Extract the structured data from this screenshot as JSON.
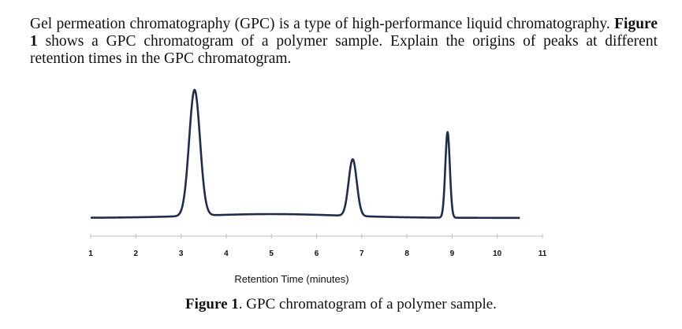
{
  "question": {
    "part1": "Gel permeation chromatography (GPC) is a type of high-performance liquid chromatography.",
    "figure_ref": "Figure 1",
    "part2": "shows a GPC chromatogram of a polymer sample. Explain the origins of peaks at different retention times in the GPC chromatogram."
  },
  "caption": {
    "label": "Figure 1",
    "text": ". GPC chromatogram of a polymer sample."
  },
  "chart_data": {
    "type": "line",
    "xlabel": "Retention Time (minutes)",
    "ylabel": "",
    "xlim": [
      1,
      11
    ],
    "ylim": [
      0,
      1
    ],
    "x_ticks": [
      "1",
      "2",
      "3",
      "4",
      "5",
      "6",
      "7",
      "8",
      "9",
      "10",
      "11"
    ],
    "line_color": "#1f2d4d",
    "grid": false,
    "baseline": 0.02,
    "peaks": [
      {
        "center": 3.3,
        "height": 1.0,
        "width": 0.12
      },
      {
        "center": 6.8,
        "height": 0.45,
        "width": 0.09
      },
      {
        "center": 8.9,
        "height": 0.68,
        "width": 0.05
      }
    ]
  }
}
